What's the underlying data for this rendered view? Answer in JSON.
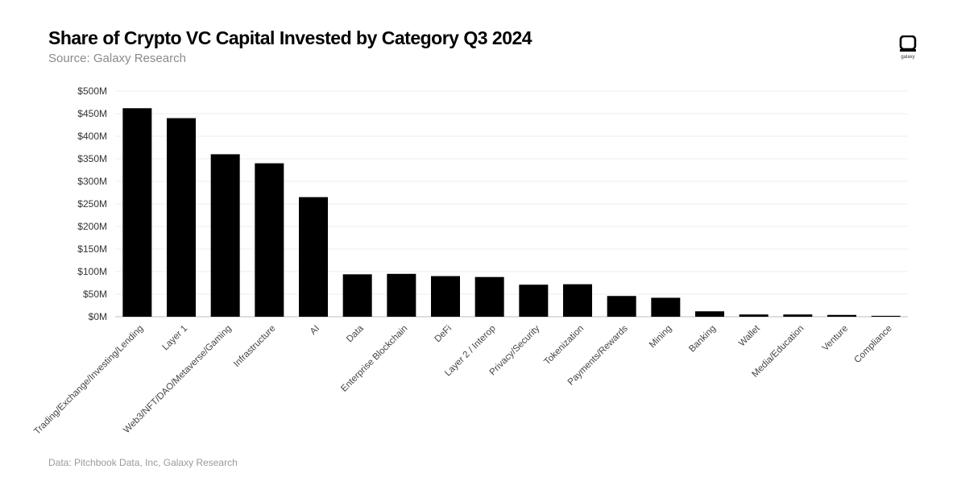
{
  "header": {
    "title": "Share of Crypto VC Capital Invested by Category Q3 2024",
    "subtitle": "Source: Galaxy Research"
  },
  "footer": {
    "note": "Data: Pitchbook Data, Inc, Galaxy Research"
  },
  "logo": {
    "text": "galaxy",
    "icon": "galaxy-logo-icon"
  },
  "colors": {
    "bar": "#000000",
    "grid": "#ececec",
    "axis": "#bdbdbd"
  },
  "chart_data": {
    "type": "bar",
    "title": "Share of Crypto VC Capital Invested by Category Q3 2024",
    "subtitle": "Source: Galaxy Research",
    "xlabel": "",
    "ylabel": "",
    "ylim": [
      0,
      500
    ],
    "y_ticks": [
      0,
      50,
      100,
      150,
      200,
      250,
      300,
      350,
      400,
      450,
      500
    ],
    "y_tick_labels": [
      "$0M",
      "$50M",
      "$100M",
      "$150M",
      "$200M",
      "$250M",
      "$300M",
      "$350M",
      "$400M",
      "$450M",
      "$500M"
    ],
    "grid": true,
    "legend": "none",
    "categories": [
      "Trading/Exchange/Investing/Lending",
      "Layer 1",
      "Web3/NFT/DAO/Metaverse/Gaming",
      "Infrastructure",
      "AI",
      "Data",
      "Enterprise Blockchain",
      "DeFi",
      "Layer 2 / Interop",
      "Privacy/Security",
      "Tokenization",
      "Payments/Rewards",
      "Mining",
      "Banking",
      "Wallet",
      "Media/Education",
      "Venture",
      "Compliance"
    ],
    "values": [
      462,
      440,
      360,
      340,
      265,
      94,
      95,
      90,
      88,
      71,
      72,
      46,
      42,
      12,
      5,
      5,
      4,
      2
    ]
  }
}
